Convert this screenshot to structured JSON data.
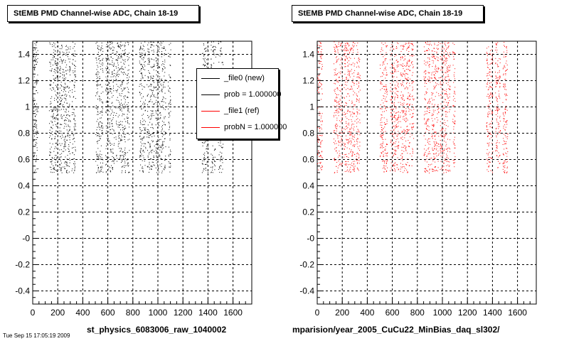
{
  "chart_data": [
    {
      "type": "scatter",
      "title": "StEMB PMD Channel-wise ADC, Chain 18-19",
      "xlabel": "st_physics_6083006_raw_1040002",
      "ylabel": "",
      "xlim": [
        0,
        1750
      ],
      "ylim": [
        -0.5,
        1.5
      ],
      "xticks": [
        0,
        200,
        400,
        600,
        800,
        1000,
        1200,
        1400,
        1600
      ],
      "yticks": [
        "-0.4",
        "-0.2",
        "-0",
        "0.2",
        "0.4",
        "0.6",
        "0.8",
        "1",
        "1.2",
        "1.4"
      ],
      "ytick_values": [
        -0.4,
        -0.2,
        0,
        0.2,
        0.4,
        0.6,
        0.8,
        1.0,
        1.2,
        1.4
      ],
      "grid": true,
      "marker_color": "#000000",
      "point_y_range": [
        0.5,
        1.5
      ],
      "channel_bands": [
        [
          0,
          40
        ],
        [
          130,
          200
        ],
        [
          210,
          300
        ],
        [
          310,
          340
        ],
        [
          500,
          560
        ],
        [
          580,
          650
        ],
        [
          660,
          740
        ],
        [
          750,
          770
        ],
        [
          850,
          900
        ],
        [
          910,
          970
        ],
        [
          980,
          1060
        ],
        [
          1080,
          1100
        ],
        [
          1350,
          1400
        ],
        [
          1420,
          1460
        ],
        [
          1480,
          1520
        ]
      ],
      "legend": {
        "position": "top-right",
        "entries": [
          {
            "label": "_file0 (new)",
            "color": "#000000"
          },
          {
            "label": "prob = 1.000000",
            "color": "#000000"
          },
          {
            "label": "_file1 (ref)",
            "color": "#ff0000"
          },
          {
            "label": "probN = 1.000000",
            "color": "#ff0000"
          }
        ]
      }
    },
    {
      "type": "scatter",
      "title": "StEMB PMD Channel-wise ADC, Chain 18-19",
      "xlabel": "mparision/year_2005_CuCu22_MinBias_daq_sl302/",
      "ylabel": "",
      "xlim": [
        0,
        1750
      ],
      "ylim": [
        -0.5,
        1.5
      ],
      "xticks": [
        0,
        200,
        400,
        600,
        800,
        1000,
        1200,
        1400,
        1600
      ],
      "yticks": [
        "-0.4",
        "-0.2",
        "-0",
        "0.2",
        "0.4",
        "0.6",
        "0.8",
        "1",
        "1.2",
        "1.4"
      ],
      "ytick_values": [
        -0.4,
        -0.2,
        0,
        0.2,
        0.4,
        0.6,
        0.8,
        1.0,
        1.2,
        1.4
      ],
      "grid": true,
      "marker_color": "#ff0000",
      "point_y_range": [
        0.5,
        1.5
      ],
      "channel_bands": [
        [
          0,
          40
        ],
        [
          130,
          200
        ],
        [
          210,
          300
        ],
        [
          310,
          340
        ],
        [
          500,
          560
        ],
        [
          580,
          650
        ],
        [
          660,
          740
        ],
        [
          750,
          770
        ],
        [
          850,
          900
        ],
        [
          910,
          970
        ],
        [
          980,
          1060
        ],
        [
          1080,
          1100
        ],
        [
          1350,
          1400
        ],
        [
          1420,
          1460
        ],
        [
          1480,
          1520
        ]
      ]
    }
  ],
  "footer_stamp": "Tue Sep 15 17:05:19 2009"
}
